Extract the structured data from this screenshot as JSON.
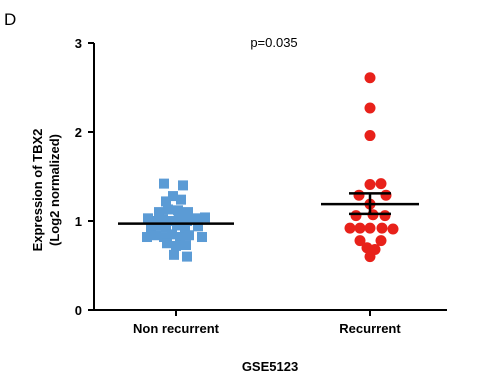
{
  "panel_label": "D",
  "chart_data": {
    "type": "scatter",
    "title": "",
    "annotation": "p=0.035",
    "xlabel": "GSE5123",
    "ylabel_line1": "Expression of TBX2",
    "ylabel_line2": "(Log2 normalized)",
    "ylim": [
      0,
      3
    ],
    "yticks": [
      0,
      1,
      2,
      3
    ],
    "categories": [
      "Non recurrent",
      "Recurrent"
    ],
    "grid": false,
    "legend": "none",
    "series": [
      {
        "category": "Non recurrent",
        "marker": "square",
        "color": "#5b9bd5",
        "points": [
          [
            -0.12,
            1.42
          ],
          [
            0.07,
            1.4
          ],
          [
            -0.03,
            1.28
          ],
          [
            -0.1,
            1.22
          ],
          [
            0.05,
            1.24
          ],
          [
            -0.17,
            1.1
          ],
          [
            -0.08,
            1.13
          ],
          [
            0.02,
            1.12
          ],
          [
            0.12,
            1.1
          ],
          [
            -0.28,
            1.03
          ],
          [
            -0.21,
            1.0
          ],
          [
            -0.13,
            1.02
          ],
          [
            -0.05,
            1.0
          ],
          [
            0.03,
            1.02
          ],
          [
            0.11,
            1.0
          ],
          [
            0.2,
            1.03
          ],
          [
            0.29,
            1.04
          ],
          [
            -0.25,
            0.92
          ],
          [
            -0.18,
            0.95
          ],
          [
            -0.1,
            0.93
          ],
          [
            0.01,
            0.95
          ],
          [
            0.09,
            0.92
          ],
          [
            0.22,
            0.94
          ],
          [
            -0.29,
            0.82
          ],
          [
            -0.2,
            0.84
          ],
          [
            -0.12,
            0.82
          ],
          [
            -0.04,
            0.85
          ],
          [
            0.04,
            0.82
          ],
          [
            0.13,
            0.84
          ],
          [
            0.26,
            0.82
          ],
          [
            -0.09,
            0.75
          ],
          [
            0.0,
            0.72
          ],
          [
            0.1,
            0.73
          ],
          [
            -0.02,
            0.62
          ],
          [
            0.11,
            0.6
          ]
        ],
        "mean": 0.97
      },
      {
        "category": "Recurrent",
        "marker": "circle",
        "color": "#e8211a",
        "points": [
          [
            0.0,
            2.61
          ],
          [
            0.0,
            2.27
          ],
          [
            0.0,
            1.96
          ],
          [
            0.0,
            1.41
          ],
          [
            0.11,
            1.42
          ],
          [
            -0.11,
            1.29
          ],
          [
            0.16,
            1.29
          ],
          [
            0.0,
            1.19
          ],
          [
            -0.14,
            1.06
          ],
          [
            0.03,
            1.07
          ],
          [
            0.15,
            1.06
          ],
          [
            -0.2,
            0.92
          ],
          [
            -0.1,
            0.92
          ],
          [
            0.0,
            0.92
          ],
          [
            0.12,
            0.92
          ],
          [
            0.23,
            0.91
          ],
          [
            -0.1,
            0.78
          ],
          [
            0.11,
            0.78
          ],
          [
            -0.03,
            0.7
          ],
          [
            0.05,
            0.68
          ],
          [
            0.0,
            0.6
          ]
        ],
        "mean": 1.19,
        "error": [
          1.08,
          1.31
        ]
      }
    ]
  }
}
